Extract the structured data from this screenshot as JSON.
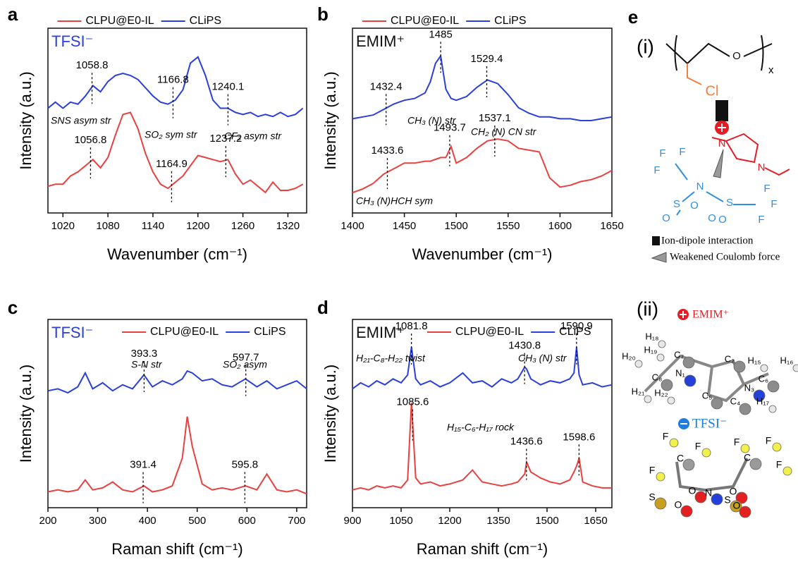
{
  "chart_data": [
    {
      "type": "line",
      "panel": "a",
      "tag": "TFSI⁻",
      "tag_color": "#2a3fdc",
      "legend": "top",
      "xlabel": "Wavenumber (cm⁻¹)",
      "ylabel": "Intensity (a.u.)",
      "xlim": [
        1000,
        1345
      ],
      "xticks": [
        1020,
        1080,
        1140,
        1200,
        1260,
        1320
      ],
      "ylim": [
        1.5,
        10.5
      ],
      "x": [
        1000,
        1010,
        1020,
        1030,
        1040,
        1050,
        1060,
        1070,
        1080,
        1090,
        1100,
        1110,
        1120,
        1130,
        1140,
        1150,
        1160,
        1170,
        1180,
        1190,
        1200,
        1210,
        1220,
        1230,
        1240,
        1250,
        1260,
        1270,
        1280,
        1290,
        1300,
        1310,
        1320,
        1330,
        1340
      ],
      "series": [
        {
          "name": "CLPU@E0-IL",
          "color": "#e8413f",
          "peaks": [
            1056.8,
            1164.9,
            1237.2
          ],
          "values": [
            2.8,
            2.9,
            2.9,
            3.3,
            3.5,
            3.8,
            4.1,
            3.7,
            4.2,
            5.3,
            6.3,
            6.4,
            5.6,
            4.4,
            3.5,
            2.9,
            2.7,
            3.0,
            3.3,
            3.8,
            4.3,
            4.2,
            4.1,
            4.0,
            4.1,
            3.4,
            2.9,
            3.1,
            2.8,
            2.5,
            3.0,
            2.6,
            2.6,
            2.7,
            2.9
          ]
        },
        {
          "name": "CLiPS",
          "color": "#2a3fdc",
          "peaks": [
            1058.8,
            1166.8,
            1240.1
          ],
          "values": [
            6.6,
            6.9,
            6.6,
            6.9,
            6.8,
            7.2,
            7.7,
            7.4,
            7.9,
            8.2,
            8.3,
            8.2,
            8.0,
            7.6,
            7.2,
            6.9,
            6.8,
            7.0,
            7.5,
            8.8,
            9.1,
            8.2,
            7.0,
            6.6,
            6.6,
            6.4,
            6.3,
            6.4,
            6.2,
            6.3,
            6.2,
            6.4,
            6.2,
            6.3,
            6.6
          ]
        }
      ],
      "annotations": [
        "SNS asym str",
        "SO₂ sym str",
        "CF₃ asym str"
      ]
    },
    {
      "type": "line",
      "panel": "b",
      "tag": "EMIM⁺",
      "tag_color": "#111111",
      "legend": "top",
      "xlabel": "Wavenumber (cm⁻¹)",
      "ylabel": "Intensity (a.u.)",
      "xlim": [
        1400,
        1650
      ],
      "xticks": [
        1400,
        1450,
        1500,
        1550,
        1600,
        1650
      ],
      "ylim": [
        0.5,
        10.5
      ],
      "x": [
        1400,
        1410,
        1420,
        1430,
        1440,
        1450,
        1460,
        1470,
        1475,
        1480,
        1485,
        1490,
        1495,
        1500,
        1510,
        1520,
        1530,
        1540,
        1550,
        1560,
        1570,
        1580,
        1590,
        1600,
        1610,
        1620,
        1630,
        1640,
        1650
      ],
      "series": [
        {
          "name": "CLPU@E0-IL",
          "color": "#e8413f",
          "peaks": [
            1433.6,
            1493.7,
            1537.1
          ],
          "values": [
            1.6,
            1.8,
            2.1,
            2.6,
            2.9,
            3.2,
            3.2,
            3.3,
            3.3,
            3.4,
            3.5,
            3.5,
            4.1,
            3.2,
            3.5,
            4.0,
            4.4,
            4.5,
            4.4,
            4.0,
            3.9,
            3.8,
            2.4,
            1.9,
            2.0,
            2.2,
            2.3,
            2.5,
            2.8
          ]
        },
        {
          "name": "CLiPS",
          "color": "#2a3fdc",
          "peaks": [
            1432.4,
            1485,
            1529.4
          ],
          "values": [
            5.6,
            5.7,
            5.8,
            6.1,
            6.4,
            6.6,
            6.7,
            7.0,
            7.6,
            8.6,
            9.0,
            7.2,
            6.7,
            6.6,
            6.8,
            7.3,
            7.7,
            7.5,
            6.9,
            6.2,
            5.9,
            5.7,
            5.7,
            5.6,
            5.6,
            5.5,
            5.5,
            5.6,
            5.7
          ]
        }
      ],
      "annotations": [
        "CH₃ (N) str",
        "CH₂ (N) CN str",
        "CH₃ (N)HCH sym"
      ]
    },
    {
      "type": "line",
      "panel": "c",
      "tag": "TFSI⁻",
      "tag_color": "#2a3fdc",
      "legend": "upper right",
      "xlabel": "Raman shift (cm⁻¹)",
      "ylabel": "Intensity (a.u.)",
      "xlim": [
        200,
        720
      ],
      "xticks": [
        200,
        300,
        400,
        500,
        600,
        700
      ],
      "ylim": [
        0.5,
        10
      ],
      "x": [
        200,
        220,
        240,
        260,
        275,
        290,
        310,
        330,
        350,
        370,
        393,
        410,
        430,
        450,
        470,
        480,
        490,
        510,
        530,
        550,
        570,
        597,
        620,
        640,
        660,
        680,
        700,
        720
      ],
      "series": [
        {
          "name": "CLPU@E0-IL",
          "color": "#e8413f",
          "peaks": [
            391.4,
            595.8
          ],
          "values": [
            1.3,
            1.4,
            1.3,
            1.4,
            1.9,
            1.4,
            1.5,
            1.8,
            1.4,
            1.3,
            1.6,
            1.3,
            1.4,
            1.6,
            3.0,
            5.1,
            3.6,
            1.7,
            1.4,
            1.5,
            1.4,
            1.6,
            1.4,
            2.2,
            1.4,
            1.3,
            1.4,
            1.2
          ]
        },
        {
          "name": "CLiPS",
          "color": "#2a3fdc",
          "peaks": [
            393.3,
            597.7
          ],
          "values": [
            6.4,
            6.5,
            6.3,
            6.6,
            7.3,
            6.5,
            6.8,
            6.4,
            6.7,
            6.5,
            7.2,
            6.6,
            6.9,
            6.7,
            7.0,
            7.4,
            7.3,
            6.9,
            7.0,
            6.7,
            6.6,
            7.0,
            6.6,
            6.9,
            6.5,
            6.7,
            6.9,
            6.5
          ]
        }
      ],
      "annotations": [
        "S-N str",
        "SO₂ asym"
      ]
    },
    {
      "type": "line",
      "panel": "d",
      "tag": "EMIM⁺",
      "tag_color": "#111111",
      "legend": "upper right",
      "xlabel": "Raman shift (cm⁻¹)",
      "ylabel": "Intensity (a.u.)",
      "xlim": [
        900,
        1700
      ],
      "xticks": [
        900,
        1050,
        1200,
        1350,
        1500,
        1650
      ],
      "ylim": [
        0.5,
        10
      ],
      "x": [
        900,
        925,
        950,
        975,
        1000,
        1025,
        1050,
        1070,
        1082,
        1095,
        1110,
        1140,
        1170,
        1200,
        1240,
        1270,
        1300,
        1330,
        1360,
        1390,
        1410,
        1431,
        1437,
        1450,
        1480,
        1510,
        1540,
        1570,
        1583,
        1591,
        1599,
        1610,
        1640,
        1670,
        1700
      ],
      "series": [
        {
          "name": "CLPU@E0-IL",
          "color": "#e8413f",
          "peaks": [
            1085.6,
            1436.6,
            1598.6
          ],
          "values": [
            1.4,
            1.5,
            1.4,
            1.6,
            1.5,
            1.6,
            1.5,
            1.9,
            5.8,
            2.0,
            1.7,
            1.8,
            1.6,
            1.7,
            1.9,
            2.4,
            1.8,
            1.7,
            1.6,
            1.7,
            1.8,
            2.2,
            2.8,
            2.3,
            2.0,
            1.8,
            1.7,
            1.9,
            2.3,
            2.6,
            3.0,
            1.8,
            1.6,
            1.5,
            1.5
          ]
        },
        {
          "name": "CLiPS",
          "color": "#2a3fdc",
          "peaks": [
            1081.8,
            1430.8,
            1590.9
          ],
          "values": [
            6.5,
            6.8,
            6.6,
            6.9,
            6.7,
            7.0,
            6.8,
            7.2,
            8.6,
            7.0,
            6.7,
            6.9,
            6.6,
            6.8,
            7.3,
            6.8,
            6.9,
            6.6,
            7.0,
            6.8,
            7.0,
            7.6,
            7.5,
            7.0,
            6.7,
            6.9,
            6.8,
            7.0,
            7.3,
            8.6,
            7.2,
            6.7,
            6.8,
            6.6,
            6.7
          ]
        }
      ],
      "annotations": [
        "H₂₁-C₈-H₂₂ twist",
        "CH₃ (N) str",
        "H₁₅-C₆-H₁₇ rock"
      ]
    }
  ],
  "panel_e": {
    "label": "e",
    "part_i": {
      "label": "(i)",
      "repeat": "x",
      "atoms": [
        "O",
        "Cl",
        "N",
        "N",
        "F",
        "F",
        "F",
        "N",
        "S",
        "S",
        "O",
        "O",
        "O",
        "O",
        "F",
        "F",
        "F"
      ]
    },
    "legend": [
      "Ion-dipole interaction",
      "Weakened Coulomb force"
    ],
    "part_ii": {
      "label": "(ii)",
      "cation": "EMIM⁺",
      "anion": "TFSI⁻",
      "cation_atoms": [
        "H₁₈",
        "H₁₉",
        "H₂₀",
        "C₇",
        "C₂",
        "H₁₅",
        "H₁₆",
        "N₁",
        "C₈",
        "C₆",
        "N₃",
        "H₂₁",
        "H₂₂",
        "C₅",
        "C₄",
        "H₁₇"
      ],
      "anion_atoms": [
        "F",
        "F",
        "C",
        "F",
        "S",
        "O",
        "N",
        "O",
        "O",
        "S",
        "F",
        "F",
        "C",
        "F",
        "O"
      ]
    }
  }
}
